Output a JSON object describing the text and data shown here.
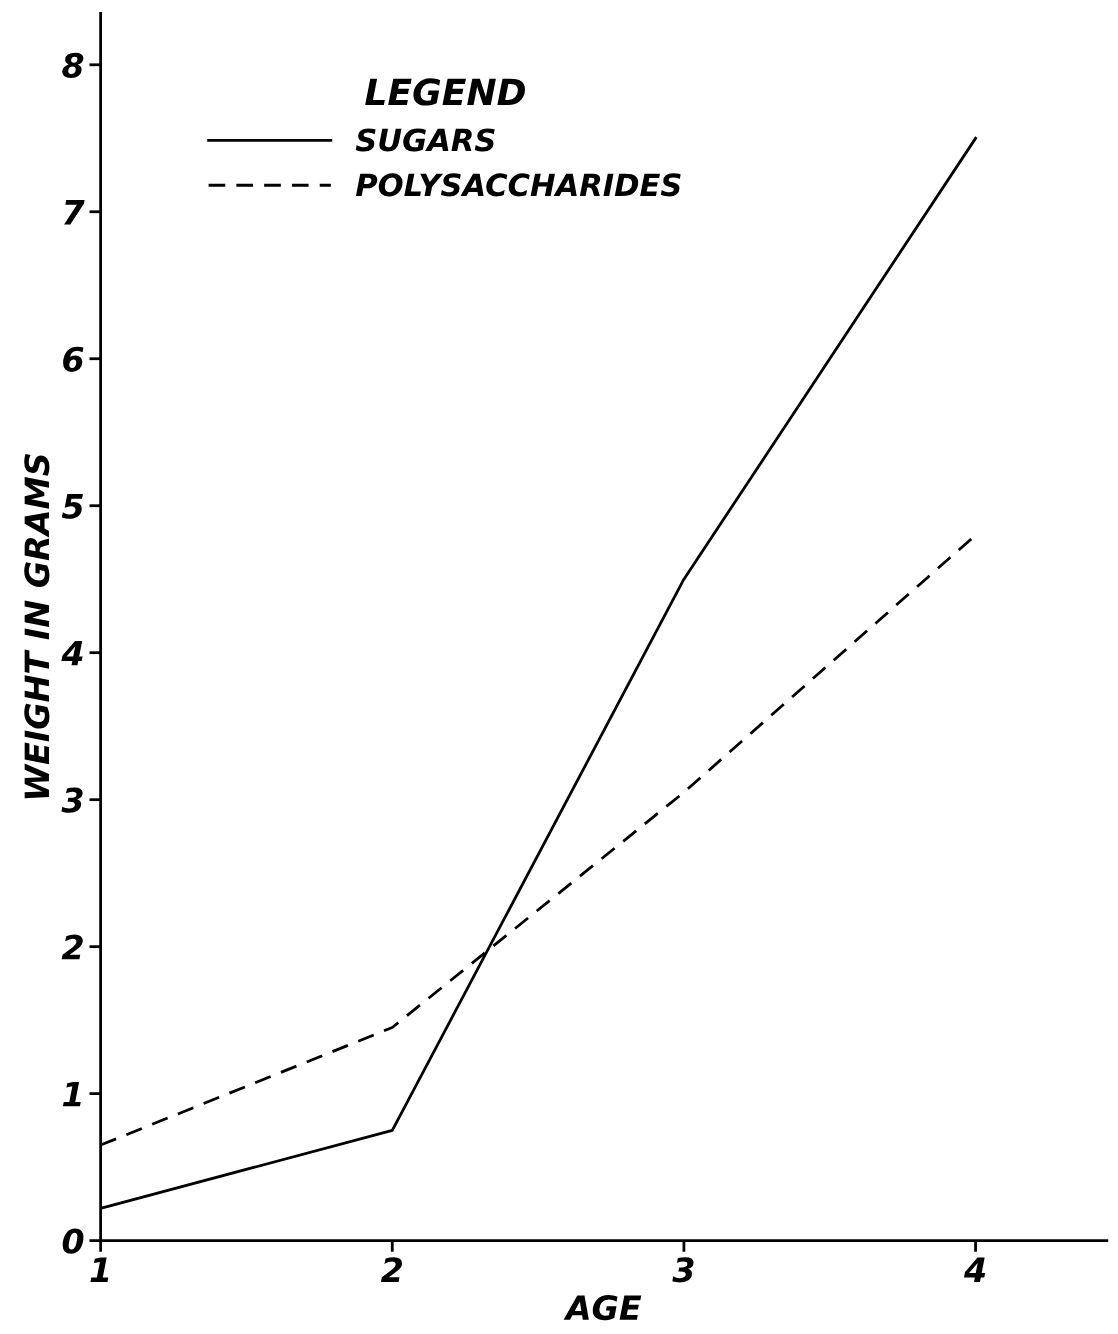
{
  "chart_data": {
    "type": "line",
    "xlabel": "AGE",
    "ylabel": "WEIGHT IN GRAMS",
    "legend_title": "LEGEND",
    "legend": "top left",
    "x": [
      1,
      2,
      3,
      4
    ],
    "series": [
      {
        "name": "SUGARS",
        "color": "#000000",
        "line_style": "solid",
        "values": [
          0.22,
          0.75,
          4.5,
          7.5
        ]
      },
      {
        "name": "POLYSACCHARIDES",
        "color": "#000000",
        "line_style": "dashed",
        "values": [
          0.65,
          1.45,
          3.05,
          4.8
        ]
      }
    ],
    "xlim": [
      1,
      4.45
    ],
    "ylim": [
      0,
      8.35
    ],
    "xticks": [
      1,
      2,
      3,
      4
    ],
    "yticks": [
      0,
      1,
      2,
      3,
      4,
      5,
      6,
      7,
      8
    ],
    "grid": false,
    "marker": "none"
  }
}
